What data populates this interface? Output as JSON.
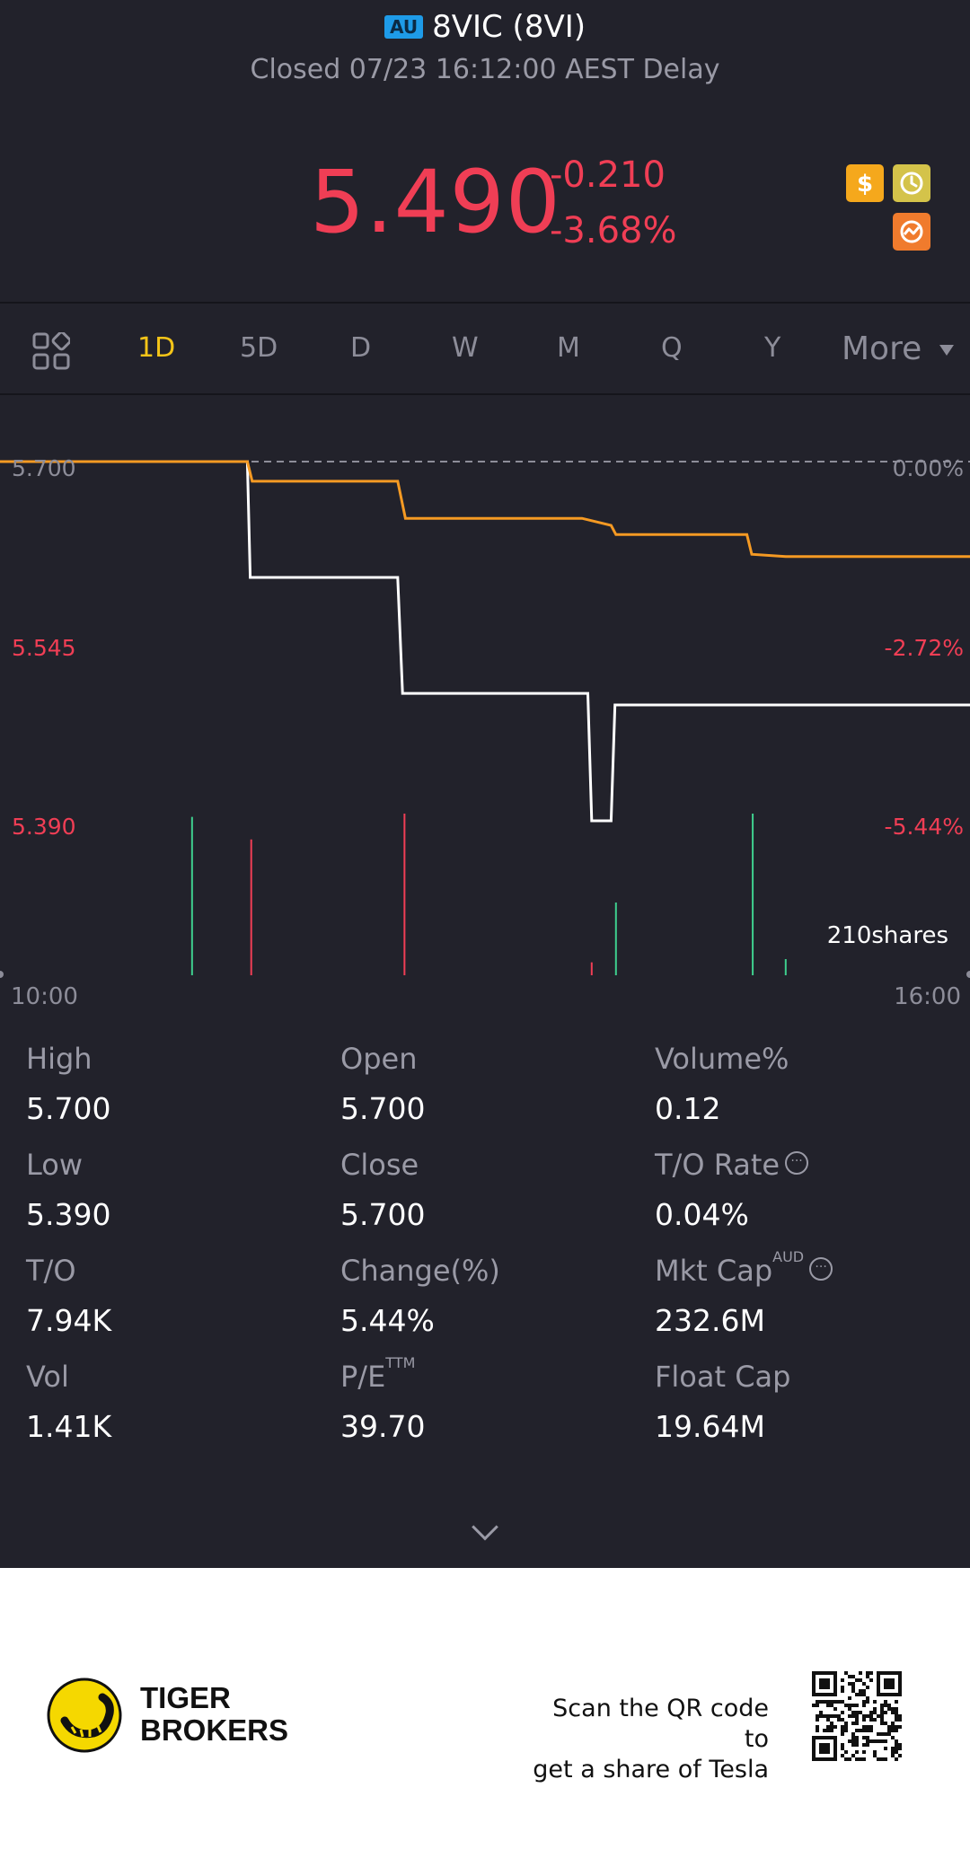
{
  "header": {
    "market_badge": "AU",
    "title": "8VIC (8VI)",
    "status": "Closed 07/23 16:12:00 AEST Delay"
  },
  "quote": {
    "price": "5.490",
    "change": "-0.210",
    "change_pct": "-3.68%"
  },
  "icons": [
    "dollar-icon",
    "clock-icon",
    "trend-icon"
  ],
  "tabs": {
    "items": [
      "1D",
      "5D",
      "D",
      "W",
      "M",
      "Q",
      "Y"
    ],
    "active": "1D",
    "more": "More"
  },
  "chart_data": {
    "type": "line",
    "y_labels_left": [
      "5.700",
      "5.545",
      "5.390"
    ],
    "y_labels_right": [
      "0.00%",
      "-2.72%",
      "-5.44%"
    ],
    "x_labels": [
      "10:00",
      "16:00"
    ],
    "volume_label": "210shares",
    "ylim": [
      5.39,
      5.7
    ],
    "series": [
      {
        "name": "price",
        "color": "#ffffff",
        "x": [
          0,
          0.255,
          0.258,
          0.41,
          0.415,
          0.606,
          0.61,
          0.63,
          0.634,
          1.0
        ],
        "values": [
          5.7,
          5.7,
          5.6,
          5.6,
          5.5,
          5.5,
          5.39,
          5.39,
          5.49,
          5.49
        ]
      },
      {
        "name": "average",
        "color": "#f59a23",
        "x": [
          0,
          0.255,
          0.26,
          0.41,
          0.418,
          0.6,
          0.63,
          0.635,
          0.77,
          0.775,
          0.81,
          1.0
        ],
        "values": [
          5.7,
          5.7,
          5.683,
          5.683,
          5.651,
          5.651,
          5.645,
          5.637,
          5.637,
          5.62,
          5.618,
          5.618
        ]
      }
    ],
    "volume_bars": [
      {
        "x": 0.198,
        "value": 0.98,
        "color": "#3ecf8e"
      },
      {
        "x": 0.259,
        "value": 0.84,
        "color": "#f03e55"
      },
      {
        "x": 0.417,
        "value": 1.0,
        "color": "#f03e55"
      },
      {
        "x": 0.61,
        "value": 0.08,
        "color": "#f03e55"
      },
      {
        "x": 0.635,
        "value": 0.45,
        "color": "#3ecf8e"
      },
      {
        "x": 0.776,
        "value": 1.0,
        "color": "#3ecf8e"
      },
      {
        "x": 0.81,
        "value": 0.1,
        "color": "#3ecf8e"
      }
    ]
  },
  "stats": {
    "high_label": "High",
    "high": "5.700",
    "open_label": "Open",
    "open": "5.700",
    "volpct_label": "Volume%",
    "volpct": "0.12",
    "low_label": "Low",
    "low": "5.390",
    "close_label": "Close",
    "close": "5.700",
    "torate_label": "T/O Rate",
    "torate": "0.04%",
    "to_label": "T/O",
    "to": "7.94K",
    "changepct_label": "Change(%)",
    "changepct": "5.44%",
    "mktcap_label": "Mkt Cap",
    "mktcap_sup": "AUD",
    "mktcap": "232.6M",
    "vol_label": "Vol",
    "vol": "1.41K",
    "pe_label": "P/E",
    "pe_sup": "TTM",
    "pe": "39.70",
    "floatcap_label": "Float Cap",
    "floatcap": "19.64M"
  },
  "footer": {
    "brand_line1": "TIGER",
    "brand_line2": "BROKERS",
    "scan_line1": "Scan the QR code to",
    "scan_line2": "get a share of Tesla"
  }
}
